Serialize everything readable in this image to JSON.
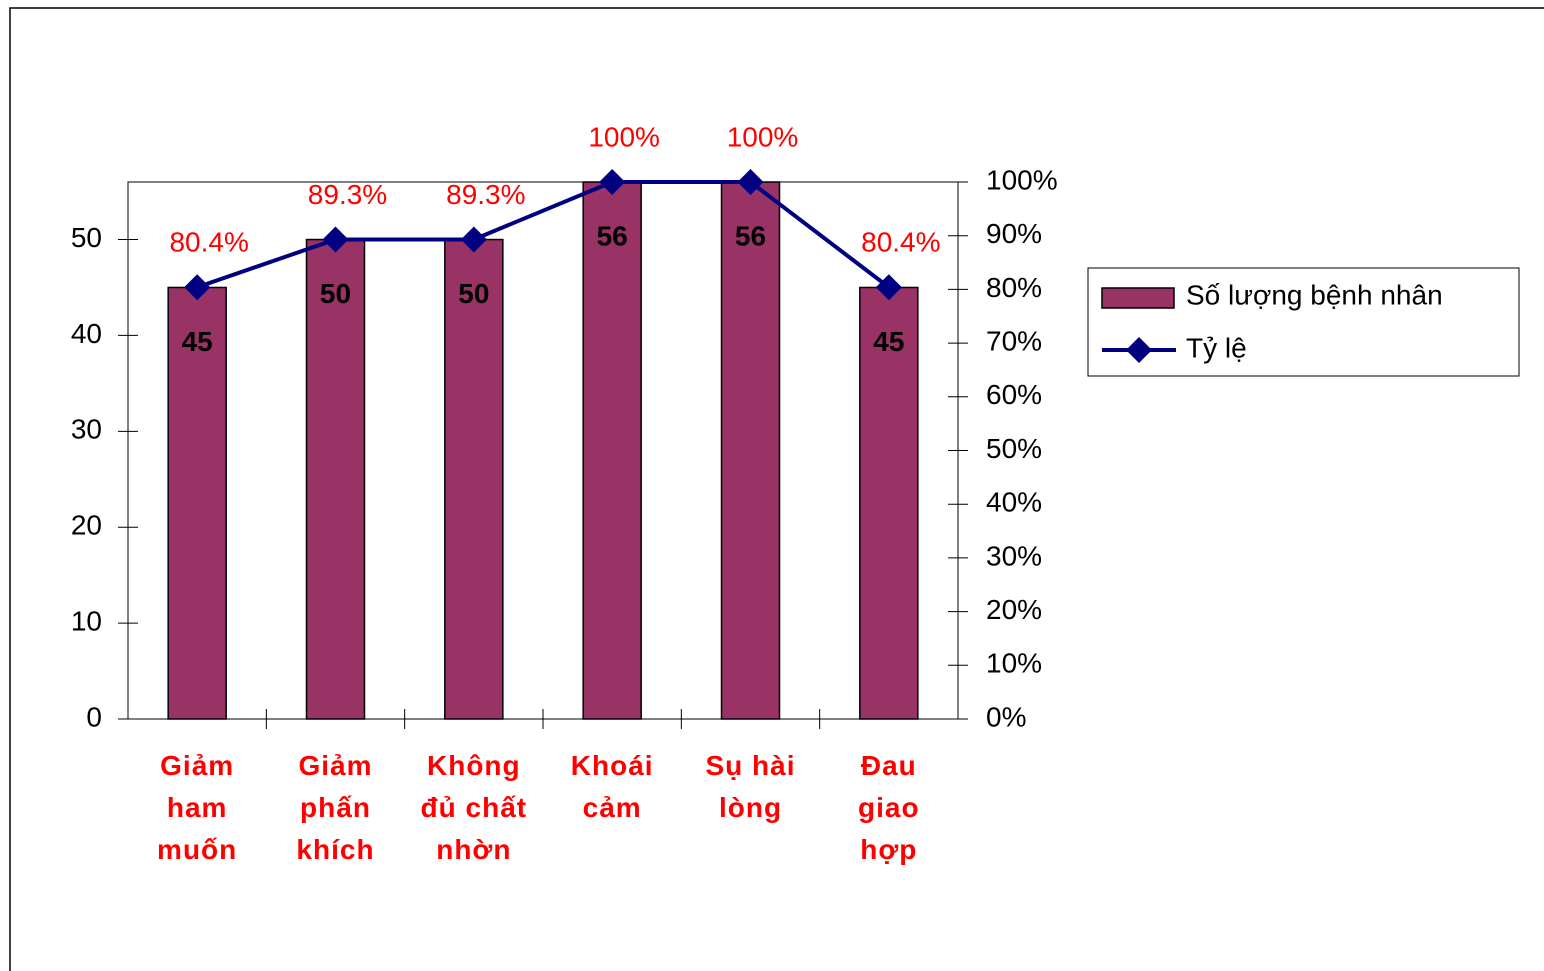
{
  "chart_data": {
    "type": "bar-line",
    "categories": [
      "Giảm\nham\nmuốn",
      "Giảm\nphấn\nkhích",
      "Không\nđủ chất\nnhờn",
      "Khoái\ncảm",
      "Sụ hài\nlòng",
      "Đau\ngiao\nhợp"
    ],
    "series": [
      {
        "name": "Số lượng bệnh nhân",
        "color": "#993366",
        "type": "bar",
        "values": [
          45,
          50,
          50,
          56,
          56,
          45
        ]
      },
      {
        "name": "Tỷ lệ",
        "color": "#000080",
        "type": "line",
        "axis": "y2",
        "values": [
          80.4,
          89.3,
          89.3,
          100,
          100,
          80.4
        ],
        "value_labels": [
          "80.4%",
          "89.3%",
          "89.3%",
          "100%",
          "100%",
          "80.4%"
        ]
      }
    ],
    "ylim": [
      0,
      56
    ],
    "yticks": [
      0,
      10,
      20,
      30,
      40,
      50
    ],
    "y2lim": [
      0,
      100
    ],
    "y2ticks": [
      {
        "value": 0,
        "label": "0%"
      },
      {
        "value": 10,
        "label": "10%"
      },
      {
        "value": 20,
        "label": "20%"
      },
      {
        "value": 30,
        "label": "30%"
      },
      {
        "value": 40,
        "label": "40%"
      },
      {
        "value": 50,
        "label": "50%"
      },
      {
        "value": 60,
        "label": "60%"
      },
      {
        "value": 70,
        "label": "70%"
      },
      {
        "value": 80,
        "label": "80%"
      },
      {
        "value": 90,
        "label": "90%"
      },
      {
        "value": 100,
        "label": "100%"
      }
    ],
    "legend": "right"
  }
}
